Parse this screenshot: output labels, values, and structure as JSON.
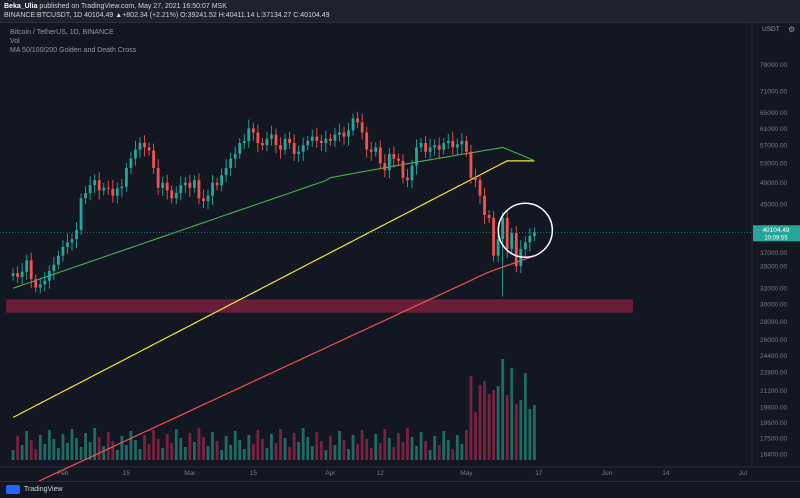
{
  "header": {
    "author": "Beka_Ulia",
    "published": "published on TradingView.com, May 27, 2021 16:50:07 MSK",
    "symbol_line": "BINANCE:BTCUSDT, 1D 40104.49 ▲+802.34 (+2.21%) O:39241.52 H:40411.14 L:37134.27 C:40104.49"
  },
  "legend": {
    "line1": "Bitcoin / TetherUS, 1D, BINANCE",
    "line2": "Vol",
    "line3": "MA 50/100/200 Golden and Death Cross"
  },
  "axis": {
    "unit": "USDT"
  },
  "price_badge": {
    "price": "40104.49",
    "timer": "10:09:55"
  },
  "footer": {
    "brand": "TradingView"
  },
  "icons": {
    "gear": "gear-icon",
    "logo": "tradingview-logo-icon"
  },
  "colors": {
    "up": "#26a69a",
    "down": "#ef5350",
    "ma50": "#4caf50",
    "ma100": "#f5e63b",
    "ma200": "#ef5350",
    "zone": "#7a1f3d"
  },
  "chart_data": {
    "type": "candlestick",
    "log_scale": true,
    "ylim": [
      16000,
      90000
    ],
    "y_ticks": [
      "79000.00",
      "71000.00",
      "65000.00",
      "61000.00",
      "57000.00",
      "53000.00",
      "49000.00",
      "45000.00",
      "41000.00",
      "37000.00",
      "35000.00",
      "32000.00",
      "30000.00",
      "28000.00",
      "26000.00",
      "24400.00",
      "22800.00",
      "21200.00",
      "19800.00",
      "18600.00",
      "17500.00",
      "16400.00"
    ],
    "x_ticks": [
      {
        "label": "Feb",
        "day": 31
      },
      {
        "label": "15",
        "day": 45
      },
      {
        "label": "Mar",
        "day": 59
      },
      {
        "label": "15",
        "day": 73
      },
      {
        "label": "Apr",
        "day": 90
      },
      {
        "label": "12",
        "day": 101
      },
      {
        "label": "May",
        "day": 120
      },
      {
        "label": "17",
        "day": 136
      },
      {
        "label": "Jun",
        "day": 151
      },
      {
        "label": "14",
        "day": 164
      },
      {
        "label": "Jul",
        "day": 181
      }
    ],
    "candles_close": [
      34000,
      33500,
      34200,
      35800,
      33200,
      32100,
      32500,
      33000,
      34300,
      35200,
      36500,
      37800,
      38500,
      39000,
      40500,
      46000,
      47000,
      48500,
      49500,
      47500,
      48000,
      47800,
      46500,
      47900,
      48200,
      52000,
      54000,
      56000,
      57500,
      56500,
      55800,
      52000,
      48000,
      49000,
      47500,
      46000,
      47000,
      48500,
      49000,
      48000,
      49500,
      46000,
      45500,
      46500,
      49000,
      48500,
      50500,
      52000,
      54000,
      55000,
      57500,
      58000,
      61000,
      60000,
      57500,
      57000,
      58500,
      59500,
      57000,
      56000,
      58500,
      57500,
      55000,
      55500,
      57000,
      58000,
      59000,
      58000,
      57500,
      58500,
      58000,
      59500,
      60000,
      59000,
      60500,
      63500,
      62500,
      60000,
      56000,
      55500,
      56500,
      53000,
      51500,
      55000,
      54000,
      53500,
      50000,
      49500,
      52500,
      56500,
      57500,
      55500,
      56500,
      57000,
      56000,
      57500,
      58000,
      56500,
      57200,
      58000,
      55500,
      50000,
      49500,
      46500,
      43000,
      42500,
      36500,
      39000,
      42500,
      37500,
      40000,
      35000,
      37500,
      38500,
      39500,
      40104
    ],
    "zone_band": [
      29000,
      30600
    ],
    "volume_note": "volume bars per candle (relative)"
  }
}
